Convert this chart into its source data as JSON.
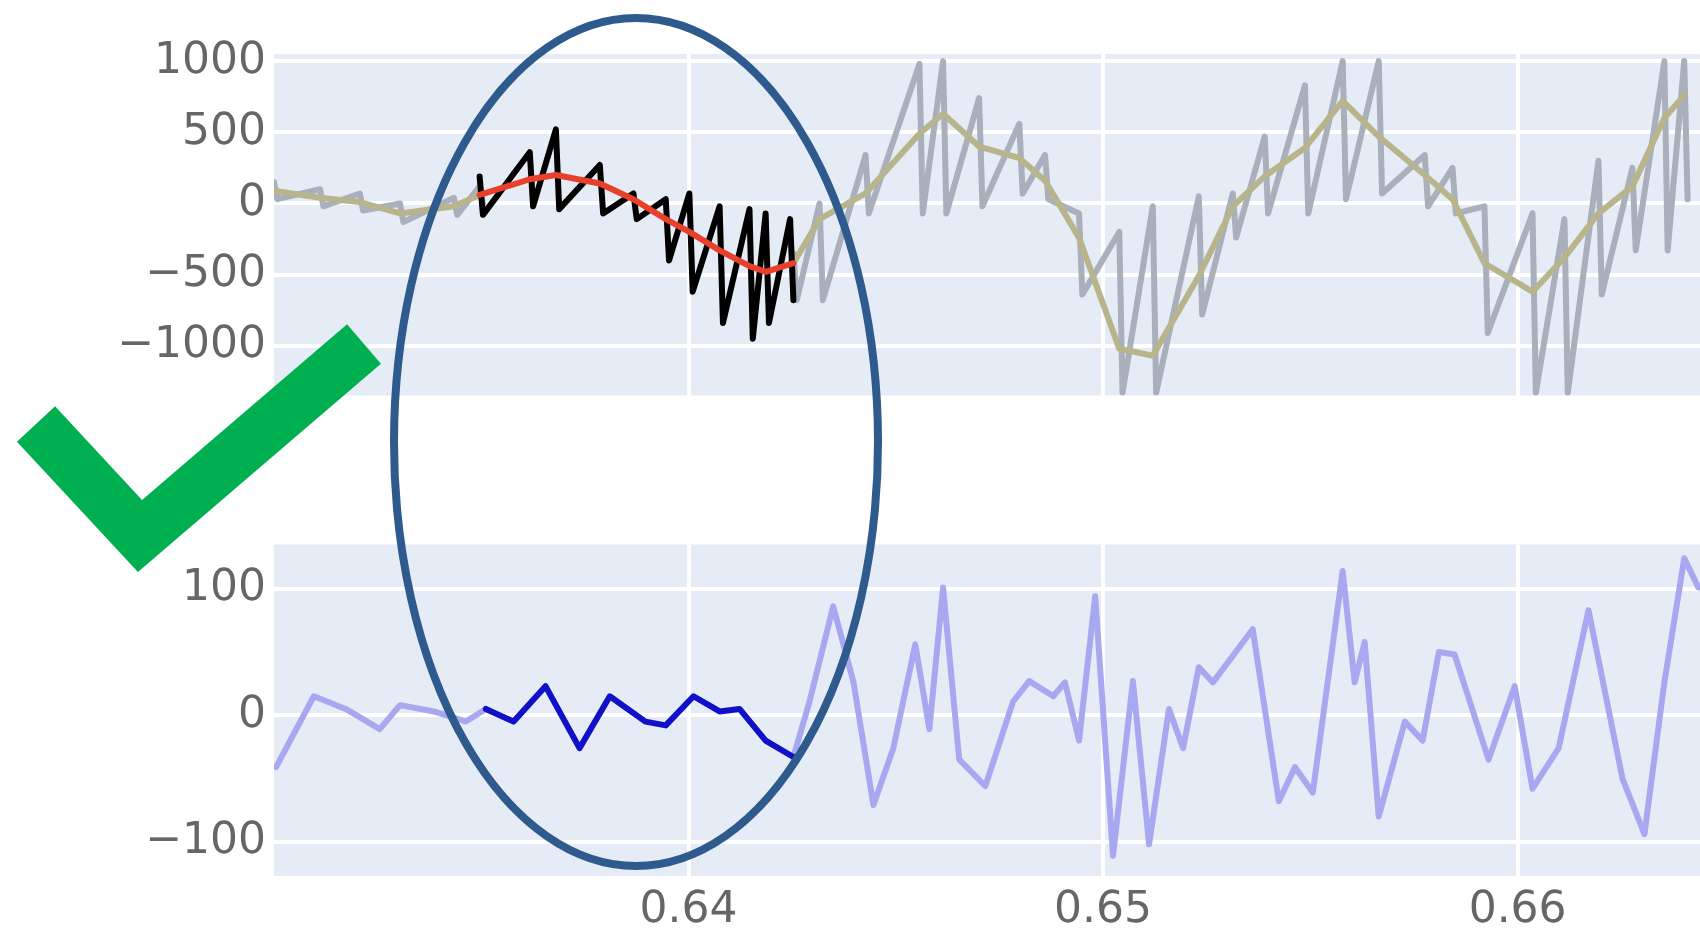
{
  "chart_data": [
    {
      "type": "line",
      "xlim": [
        0.63,
        0.6644
      ],
      "xticks": [
        0.64,
        0.65,
        0.66
      ],
      "ylim": [
        -1350,
        1050
      ],
      "yticks": [
        {
          "value": -1000,
          "label": "−1000"
        },
        {
          "value": -500,
          "label": "−500"
        },
        0,
        500,
        1000
      ],
      "grid": true,
      "tick_labels": "y",
      "series": [
        {
          "color": "#a9afbb",
          "x": [
            0.63,
            0.63008,
            0.63111,
            0.63119,
            0.63207,
            0.63215,
            0.63304,
            0.63312,
            0.63434,
            0.63442,
            0.63496,
            0.63504,
            0.6388,
            0.64253,
            0.64261,
            0.64316,
            0.64324,
            0.64427,
            0.64435,
            0.64557,
            0.64565,
            0.64614,
            0.64622,
            0.64701,
            0.64709,
            0.64798,
            0.64806,
            0.6486,
            0.64868,
            0.64942,
            0.6495,
            0.65039,
            0.65047,
            0.6512,
            0.65128,
            0.65231,
            0.65239,
            0.65313,
            0.65321,
            0.6539,
            0.65398,
            0.65487,
            0.65495,
            0.65578,
            0.65586,
            0.65665,
            0.65673,
            0.65776,
            0.65784,
            0.65843,
            0.65851,
            0.6592,
            0.65928,
            0.66036,
            0.66044,
            0.66113,
            0.66121,
            0.66195,
            0.66203,
            0.66277,
            0.66285,
            0.66354,
            0.66362,
            0.66402,
            0.6641
          ],
          "values": [
            150,
            30,
            100,
            -20,
            70,
            -50,
            0,
            -130,
            40,
            -80,
            120,
            0,
            null,
            -350,
            -680,
            0,
            -680,
            340,
            -70,
            980,
            -70,
            1000,
            -70,
            740,
            -20,
            560,
            70,
            340,
            30,
            -70,
            -640,
            -200,
            -1330,
            -20,
            -1330,
            50,
            -780,
            70,
            -240,
            470,
            -70,
            830,
            -70,
            1000,
            30,
            1000,
            70,
            340,
            -20,
            250,
            -70,
            -20,
            -910,
            -70,
            -1330,
            -110,
            -1330,
            300,
            -640,
            250,
            -330,
            1000,
            -330,
            1000,
            30
          ]
        },
        {
          "color": "#b8b48c",
          "x": [
            0.63,
            0.63111,
            0.63207,
            0.63304,
            0.63434,
            0.63496,
            0.63882,
            0.64253,
            0.64316,
            0.64427,
            0.64557,
            0.64614,
            0.64701,
            0.64798,
            0.6486,
            0.64942,
            0.65039,
            0.6512,
            0.65231,
            0.65313,
            0.6539,
            0.65487,
            0.65578,
            0.65665,
            0.65776,
            0.65843,
            0.6592,
            0.66036,
            0.66113,
            0.66195,
            0.66277,
            0.66354,
            0.66402
          ],
          "values": [
            90,
            40,
            10,
            -70,
            -20,
            60,
            null,
            -420,
            -110,
            70,
            490,
            630,
            400,
            320,
            160,
            -240,
            -1020,
            -1070,
            -510,
            -20,
            190,
            390,
            720,
            470,
            200,
            30,
            -420,
            -620,
            -380,
            -70,
            120,
            600,
            760
          ]
        },
        {
          "color": "#000000",
          "x": [
            0.63496,
            0.63504,
            0.63617,
            0.63625,
            0.6368,
            0.63688,
            0.63786,
            0.63794,
            0.63867,
            0.63875,
            0.63945,
            0.63953,
            0.64002,
            0.6401,
            0.64075,
            0.64083,
            0.64147,
            0.64155,
            0.64186,
            0.64194,
            0.64245,
            0.64253
          ],
          "values": [
            190,
            -80,
            360,
            -20,
            520,
            -40,
            270,
            -70,
            70,
            -110,
            30,
            -400,
            70,
            -620,
            -20,
            -840,
            -40,
            -950,
            -70,
            -840,
            -110,
            -680
          ]
        },
        {
          "color": "#e8402a",
          "x": [
            0.63496,
            0.63617,
            0.6368,
            0.63786,
            0.63867,
            0.63945,
            0.64002,
            0.64075,
            0.64147,
            0.64186,
            0.64253
          ],
          "values": [
            60,
            170,
            200,
            140,
            30,
            -110,
            -200,
            -330,
            -440,
            -480,
            -420
          ]
        }
      ]
    },
    {
      "type": "line",
      "xlim": [
        0.63,
        0.6644
      ],
      "xticks": [
        0.64,
        0.65,
        0.66
      ],
      "ylim": [
        -127,
        135
      ],
      "yticks": [
        {
          "value": -100,
          "label": "−100"
        },
        0,
        100
      ],
      "grid": true,
      "series": [
        {
          "color": "#a8a8f0",
          "x": [
            0.63005,
            0.63096,
            0.63173,
            0.63255,
            0.63304,
            0.63386,
            0.63463,
            0.63511,
            0.6388,
            0.64253,
            0.64292,
            0.64349,
            0.64398,
            0.64446,
            0.64494,
            0.64547,
            0.64581,
            0.64614,
            0.64653,
            0.64716,
            0.64783,
            0.64822,
            0.6488,
            0.64908,
            0.64942,
            0.64981,
            0.65024,
            0.65072,
            0.65111,
            0.65159,
            0.65193,
            0.65231,
            0.65265,
            0.65361,
            0.65424,
            0.65463,
            0.65506,
            0.65578,
            0.65607,
            0.65631,
            0.65665,
            0.65728,
            0.65771,
            0.6581,
            0.65848,
            0.6593,
            0.65993,
            0.66036,
            0.66099,
            0.66171,
            0.66253,
            0.66306,
            0.66354,
            0.66402,
            0.66436
          ],
          "values": [
            -41,
            15,
            5,
            -11,
            8,
            3,
            -5,
            5,
            null,
            -33,
            11,
            86,
            26,
            -71,
            -26,
            56,
            -11,
            101,
            -35,
            -56,
            11,
            27,
            15,
            26,
            -20,
            94,
            -111,
            27,
            -102,
            5,
            -26,
            38,
            26,
            68,
            -68,
            -41,
            -61,
            114,
            26,
            58,
            -80,
            -5,
            -20,
            50,
            48,
            -35,
            23,
            -58,
            -26,
            83,
            -50,
            -94,
            26,
            124,
            101
          ]
        },
        {
          "color": "#1010c8",
          "x": [
            0.63511,
            0.63578,
            0.63655,
            0.63737,
            0.6381,
            0.63896,
            0.63945,
            0.64012,
            0.64075,
            0.64123,
            0.64186,
            0.64253
          ],
          "values": [
            5,
            -5,
            23,
            -26,
            15,
            -5,
            -8,
            15,
            3,
            5,
            -20,
            -33
          ]
        }
      ]
    }
  ]
}
